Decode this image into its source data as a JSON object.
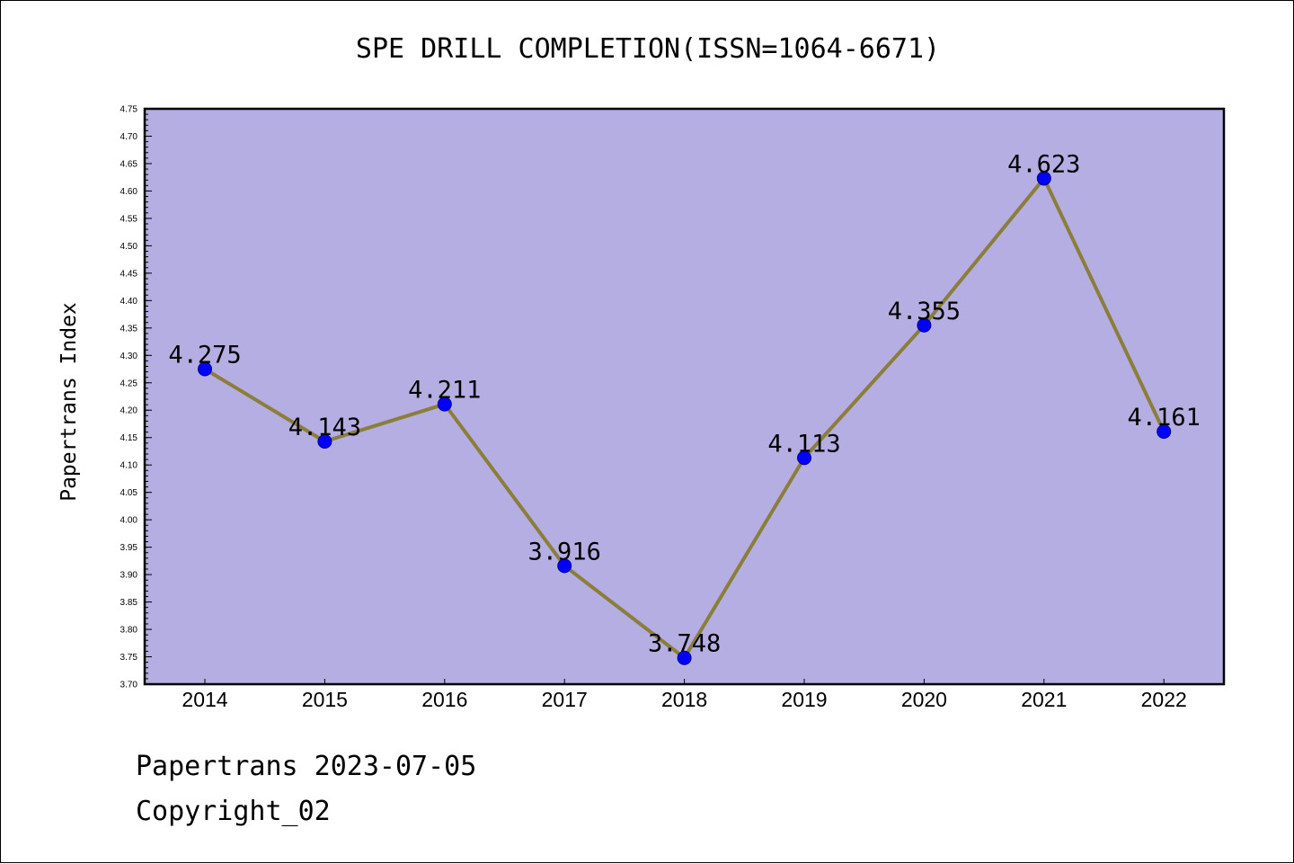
{
  "chart_data": {
    "type": "line",
    "title": "SPE DRILL COMPLETION(ISSN=1064-6671)",
    "xlabel": "",
    "ylabel": "Papertrans Index",
    "categories": [
      "2014",
      "2015",
      "2016",
      "2017",
      "2018",
      "2019",
      "2020",
      "2021",
      "2022"
    ],
    "series": [
      {
        "values": [
          4.275,
          4.143,
          4.211,
          3.916,
          3.748,
          4.113,
          4.355,
          4.623,
          4.161
        ],
        "data_labels": [
          "4.275",
          "4.143",
          "4.211",
          "3.916",
          "3.748",
          "4.113",
          "4.355",
          "4.623",
          "4.161"
        ]
      }
    ],
    "ylim": [
      3.7,
      4.75
    ],
    "yticks": [
      "3.70",
      "3.75",
      "3.80",
      "3.85",
      "3.90",
      "3.95",
      "4.00",
      "4.05",
      "4.10",
      "4.15",
      "4.20",
      "4.25",
      "4.30",
      "4.35",
      "4.40",
      "4.45",
      "4.50",
      "4.55",
      "4.60",
      "4.65",
      "4.70",
      "4.75"
    ],
    "grid": false,
    "legend": "none",
    "colors": {
      "plot_background": "#b5aee2",
      "line": "#8b7d3a",
      "marker": "#0000ff",
      "axis": "#000000"
    }
  },
  "footer": {
    "date_line": "Papertrans 2023-07-05",
    "copyright": "Copyright_02"
  }
}
